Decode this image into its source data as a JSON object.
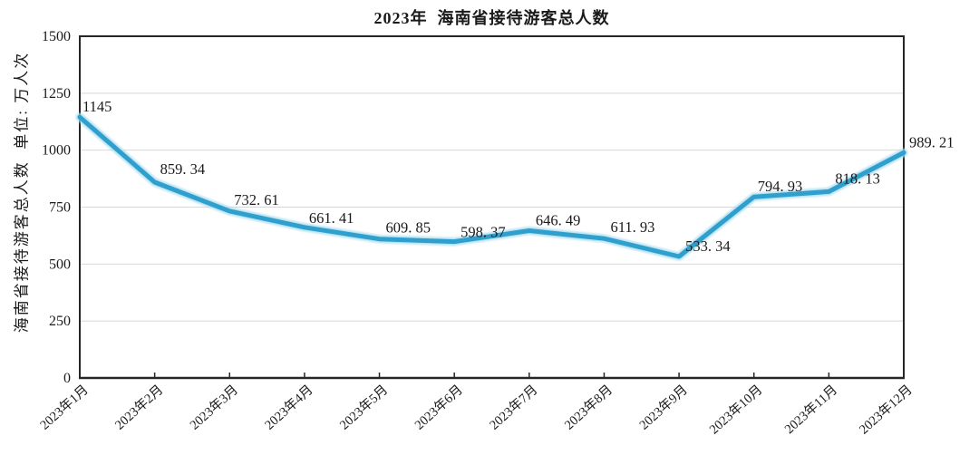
{
  "title": "2023年  海南省接待游客总人数",
  "chart_data": {
    "type": "line",
    "title": "2023年  海南省接待游客总人数",
    "categories": [
      "2023年1月",
      "2023年2月",
      "2023年3月",
      "2023年4月",
      "2023年5月",
      "2023年6月",
      "2023年7月",
      "2023年8月",
      "2023年9月",
      "2023年10月",
      "2023年11月",
      "2023年12月"
    ],
    "values": [
      1145,
      859.34,
      732.61,
      661.41,
      609.85,
      598.37,
      646.49,
      611.93,
      533.34,
      794.93,
      818.13,
      989.21
    ],
    "point_labels": [
      "1145",
      "859. 34",
      "732. 61",
      "661. 41",
      "609. 85",
      "598. 37",
      "646. 49",
      "611. 93",
      "533. 34",
      "794. 93",
      "818. 13",
      "989. 21"
    ],
    "xlabel": "",
    "ylabel": "海南省接待游客总人数  单位: 万人次",
    "y_ticks": [
      0,
      250,
      500,
      750,
      1000,
      1250,
      1500
    ],
    "y_tick_labels": [
      "0",
      "250",
      "500",
      "750",
      "1000",
      "1250",
      "1500"
    ],
    "ylim": [
      0,
      1500
    ],
    "grid": "horizontal",
    "legend_position": "none",
    "colors": {
      "line": "#2f9fce",
      "line_halo": "#a9dcef",
      "gridline": "#d8d8d8",
      "axis": "#262626",
      "text": "#1a1a1a",
      "background": "#ffffff"
    }
  }
}
